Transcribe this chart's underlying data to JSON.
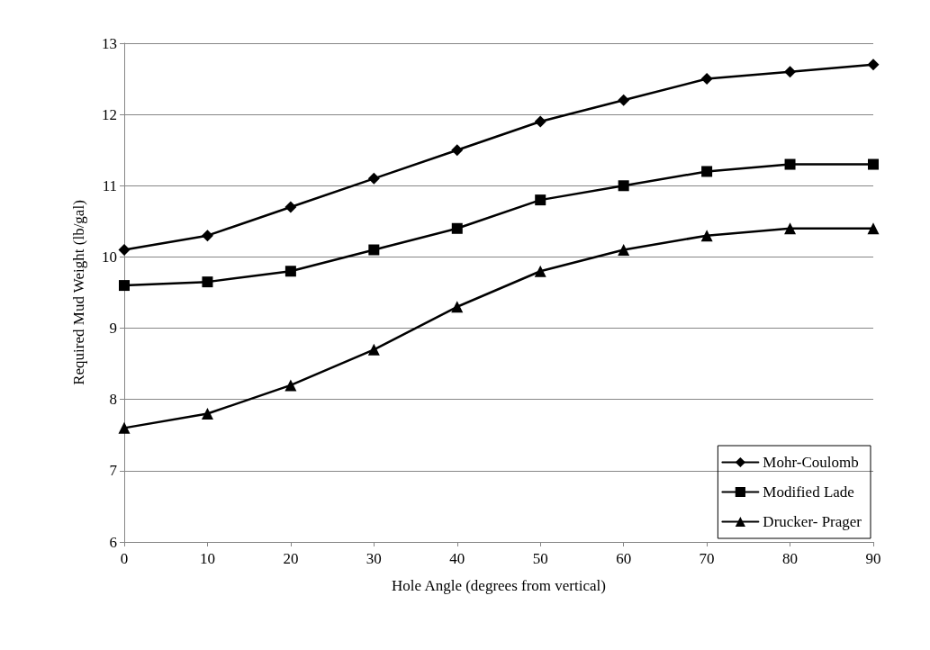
{
  "chart_data": {
    "type": "line",
    "xlabel": "Hole Angle (degrees from vertical)",
    "ylabel": "Required Mud Weight (lb/gal)",
    "x": [
      0,
      10,
      20,
      30,
      40,
      50,
      60,
      70,
      80,
      90
    ],
    "series": [
      {
        "name": "Mohr-Coulomb",
        "color": "#000000",
        "marker": "diamond",
        "values": [
          10.1,
          10.3,
          10.7,
          11.1,
          11.5,
          11.9,
          12.2,
          12.5,
          12.6,
          12.7
        ]
      },
      {
        "name": "Modified Lade",
        "color": "#000000",
        "marker": "square",
        "values": [
          9.6,
          9.65,
          9.8,
          10.1,
          10.4,
          10.8,
          11.0,
          11.2,
          11.3,
          11.3
        ]
      },
      {
        "name": "Drucker- Prager",
        "color": "#000000",
        "marker": "triangle",
        "values": [
          7.6,
          7.8,
          8.2,
          8.7,
          9.3,
          9.8,
          10.1,
          10.3,
          10.4,
          10.4
        ]
      }
    ],
    "xlim": [
      0,
      90
    ],
    "xticks": [
      0,
      10,
      20,
      30,
      40,
      50,
      60,
      70,
      80,
      90
    ],
    "ylim": [
      6,
      13
    ],
    "yticks": [
      6,
      7,
      8,
      9,
      10,
      11,
      12,
      13
    ],
    "grid": "y",
    "legend": "bottom right",
    "line_style": "solid"
  }
}
